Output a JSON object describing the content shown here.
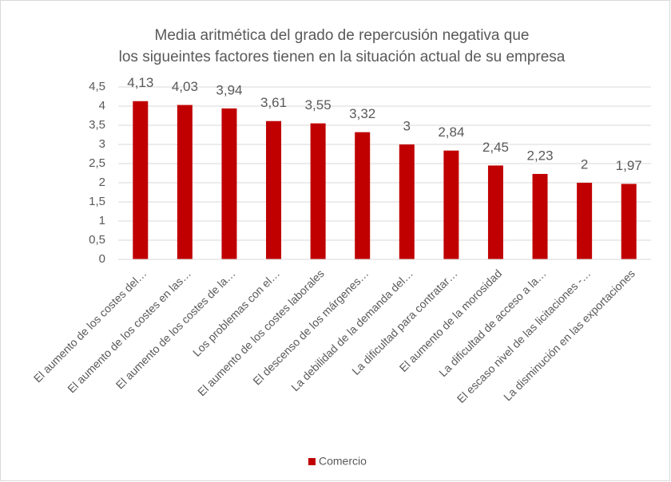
{
  "chart_data": {
    "type": "bar",
    "title": [
      "Media aritmética del grado de repercusión negativa que",
      "los  sigueintes factores tienen en la situación actual de su empresa"
    ],
    "categories": [
      "El aumento de los costes del…",
      "El aumento de los costes en las…",
      "El aumento de los costes de la…",
      "Los problemas con el…",
      "El aumento de los costes laborales",
      "El descenso de los márgenes…",
      "La debilidad de la demanda del…",
      "La dificultad para contratar…",
      "El aumento de la morosidad",
      "La dificultad de acceso a la…",
      "El escaso nivel de las licitaciones -…",
      "La disminución en las exportaciones"
    ],
    "series": [
      {
        "name": "Comercio",
        "color": "#c00000",
        "values": [
          4.13,
          4.03,
          3.94,
          3.61,
          3.55,
          3.32,
          3,
          2.84,
          2.45,
          2.23,
          2,
          1.97
        ],
        "value_labels": [
          "4,13",
          "4,03",
          "3,94",
          "3,61",
          "3,55",
          "3,32",
          "3",
          "2,84",
          "2,45",
          "2,23",
          "2",
          "1,97"
        ]
      }
    ],
    "ylim": [
      0,
      4.5
    ],
    "yticks": [
      0,
      {
        "value": 0.5,
        "label": "0,5"
      },
      1,
      {
        "value": 1.5,
        "label": "1,5"
      },
      2,
      {
        "value": 2.5,
        "label": "2,5"
      },
      3,
      {
        "value": 3.5,
        "label": "3,5"
      },
      4,
      {
        "value": 4.5,
        "label": "4,5"
      }
    ],
    "grid": true,
    "legend": "bottom"
  }
}
